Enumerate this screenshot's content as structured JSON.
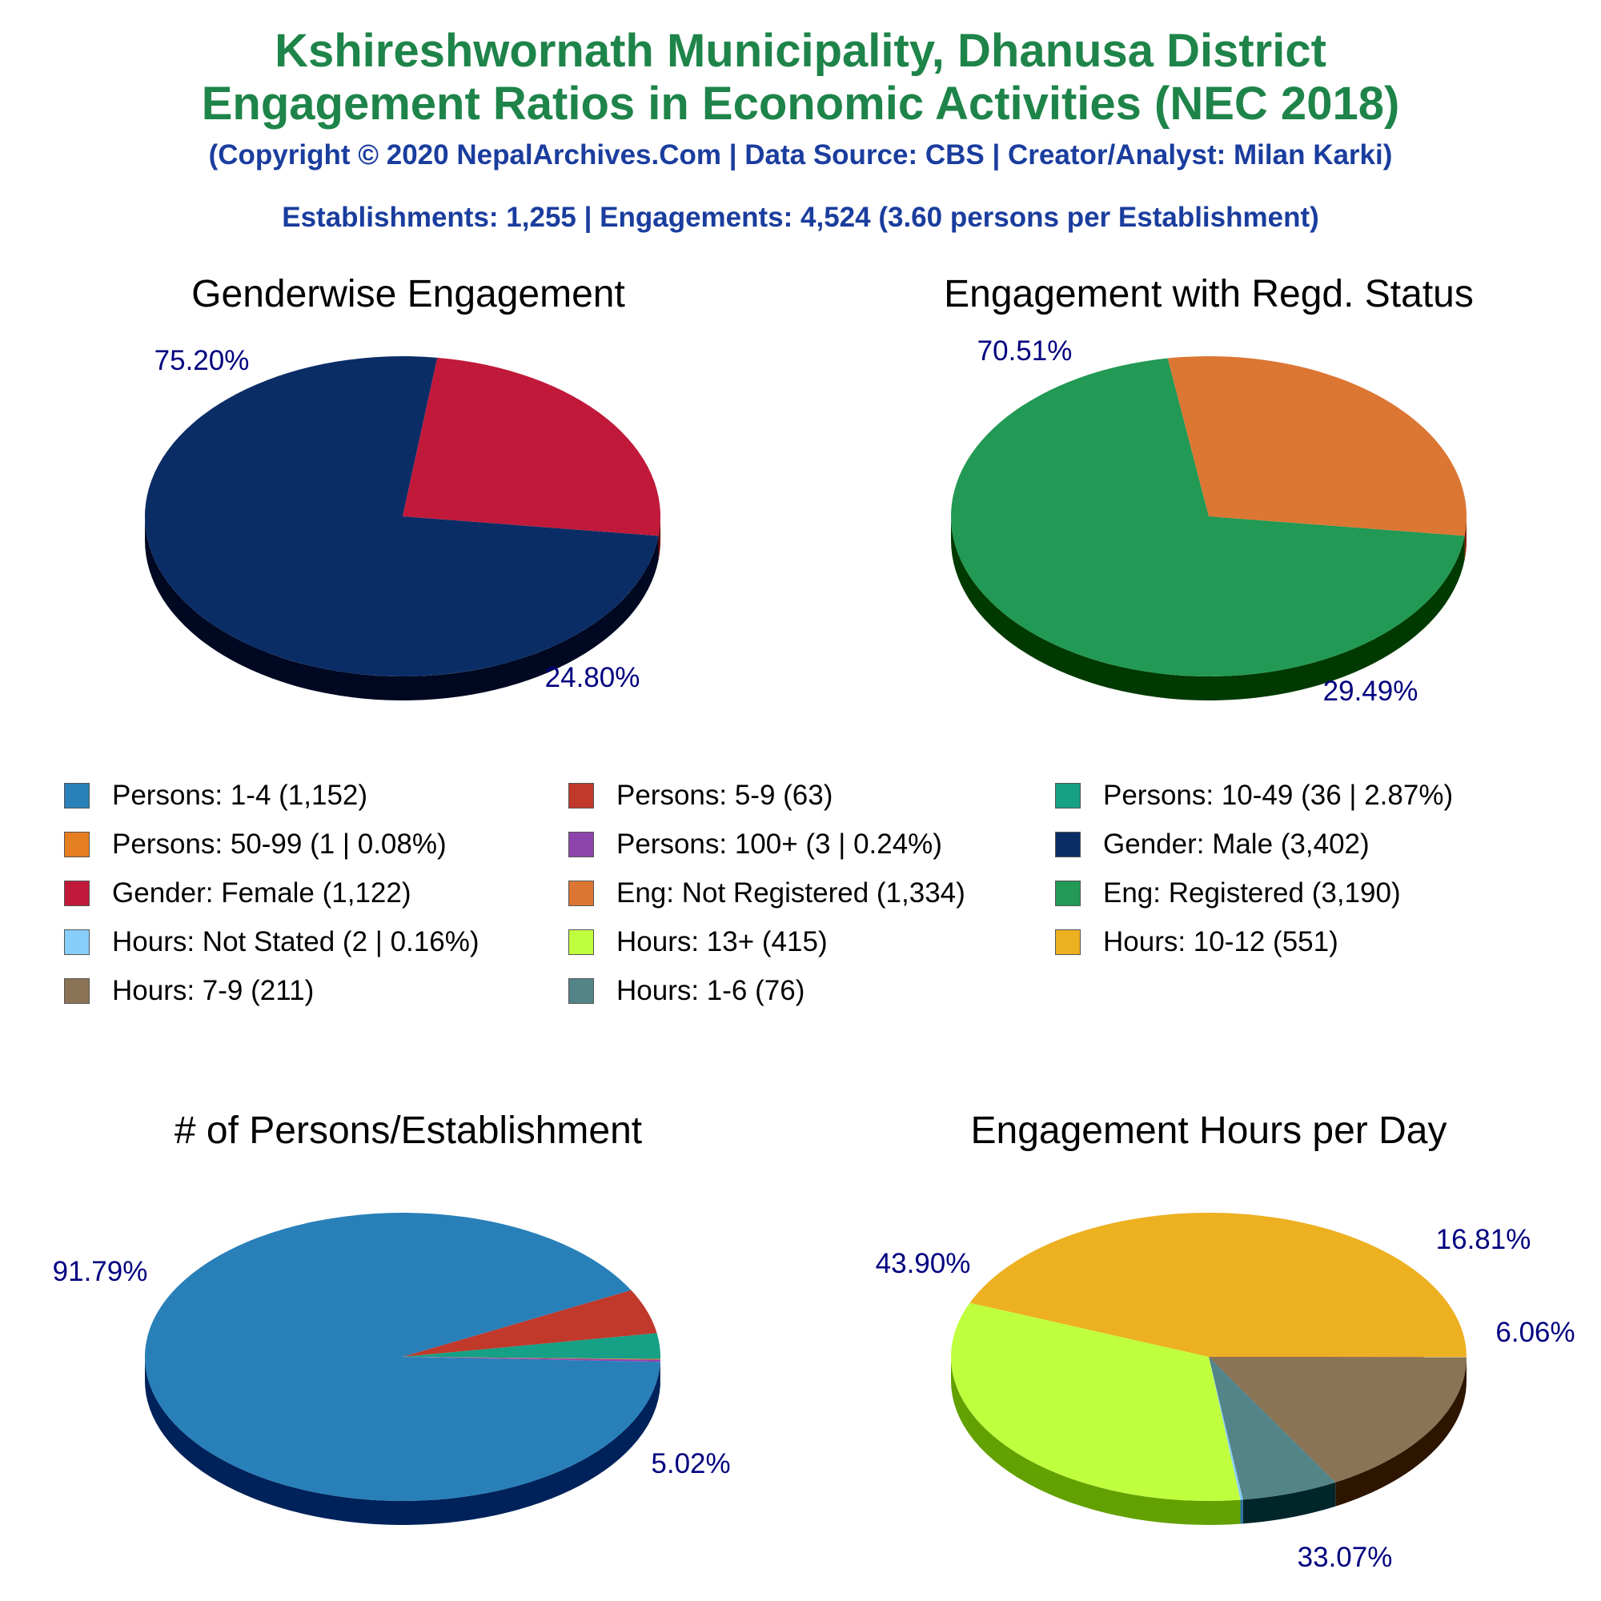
{
  "header": {
    "title_line1": "Kshireshwornath Municipality, Dhanusa District",
    "title_line2": "Engagement Ratios in Economic Activities (NEC 2018)",
    "copyright": "(Copyright © 2020 NepalArchives.Com | Data Source: CBS | Creator/Analyst: Milan Karki)",
    "summary": "Establishments: 1,255 | Engagements: 4,524 (3.60 persons per Establishment)"
  },
  "colors": {
    "title": "#1e8449",
    "subtitle": "#1a3d9e",
    "pct_label": "#000080"
  },
  "chart_data": [
    {
      "type": "pie",
      "title": "Genderwise Engagement",
      "slices": [
        {
          "label": "Gender: Male",
          "value": 75.2,
          "pct_text": "75.20%",
          "color": "#0b2d66",
          "side": "#000822"
        },
        {
          "label": "Gender: Female",
          "value": 24.8,
          "pct_text": "24.80%",
          "color": "#c0193a",
          "side": "#650000"
        }
      ]
    },
    {
      "type": "pie",
      "title": "Engagement with Regd. Status",
      "slices": [
        {
          "label": "Eng: Registered",
          "value": 70.51,
          "pct_text": "70.51%",
          "color": "#229954",
          "side": "#003a00"
        },
        {
          "label": "Eng: Not Registered",
          "value": 29.49,
          "pct_text": "29.49%",
          "color": "#dc7633",
          "side": "#7d1c00"
        }
      ]
    },
    {
      "type": "pie",
      "title": "# of Persons/Establishment",
      "slices": [
        {
          "label": "Persons: 1-4",
          "value": 91.79,
          "pct_text": "91.79%",
          "color": "#2980b9",
          "side": "#00225a"
        },
        {
          "label": "Persons: 5-9",
          "value": 5.02,
          "pct_text": "5.02%",
          "color": "#c0392b",
          "side": "#620000"
        },
        {
          "label": "Persons: 10-49",
          "value": 2.87,
          "pct_text": "",
          "color": "#16a085",
          "side": "#004227"
        },
        {
          "label": "Persons: 50-99",
          "value": 0.08,
          "pct_text": "",
          "color": "#e67e22",
          "side": "#882000"
        },
        {
          "label": "Persons: 100+",
          "value": 0.24,
          "pct_text": "",
          "color": "#8e44ad",
          "side": "#300050"
        }
      ]
    },
    {
      "type": "pie",
      "title": "Engagement Hours per Day",
      "slices": [
        {
          "label": "Hours: 10-12",
          "value": 43.9,
          "pct_text": "43.90%",
          "color": "#edb021",
          "side": "#8f5200"
        },
        {
          "label": "Hours: 7-9",
          "value": 16.81,
          "pct_text": "16.81%",
          "color": "#8b7355",
          "side": "#2d1500"
        },
        {
          "label": "Hours: 1-6",
          "value": 6.06,
          "pct_text": "6.06%",
          "color": "#528488",
          "side": "#00262a"
        },
        {
          "label": "Hours: Not Stated",
          "value": 0.16,
          "pct_text": "",
          "color": "#87cefa",
          "side": "#29709c"
        },
        {
          "label": "Hours: 13+",
          "value": 33.07,
          "pct_text": "33.07%",
          "color": "#c0ff3e",
          "side": "#62a100"
        }
      ]
    }
  ],
  "legend": [
    {
      "text": "Persons: 1-4 (1,152)",
      "color": "#2980b9"
    },
    {
      "text": "Persons: 5-9 (63)",
      "color": "#c0392b"
    },
    {
      "text": "Persons: 10-49 (36 | 2.87%)",
      "color": "#16a085"
    },
    {
      "text": "Persons: 50-99 (1 | 0.08%)",
      "color": "#e67e22"
    },
    {
      "text": "Persons: 100+ (3 | 0.24%)",
      "color": "#8e44ad"
    },
    {
      "text": "Gender: Male (3,402)",
      "color": "#0b2d66"
    },
    {
      "text": "Gender: Female (1,122)",
      "color": "#c0193a"
    },
    {
      "text": "Eng: Not Registered (1,334)",
      "color": "#dc7633"
    },
    {
      "text": "Eng: Registered (3,190)",
      "color": "#229954"
    },
    {
      "text": "Hours: Not Stated (2 | 0.16%)",
      "color": "#87cefa"
    },
    {
      "text": "Hours: 13+ (415)",
      "color": "#c0ff3e"
    },
    {
      "text": "Hours: 10-12 (551)",
      "color": "#edb021"
    },
    {
      "text": "Hours: 7-9 (211)",
      "color": "#8b7355"
    },
    {
      "text": "Hours: 1-6 (76)",
      "color": "#528488"
    }
  ]
}
